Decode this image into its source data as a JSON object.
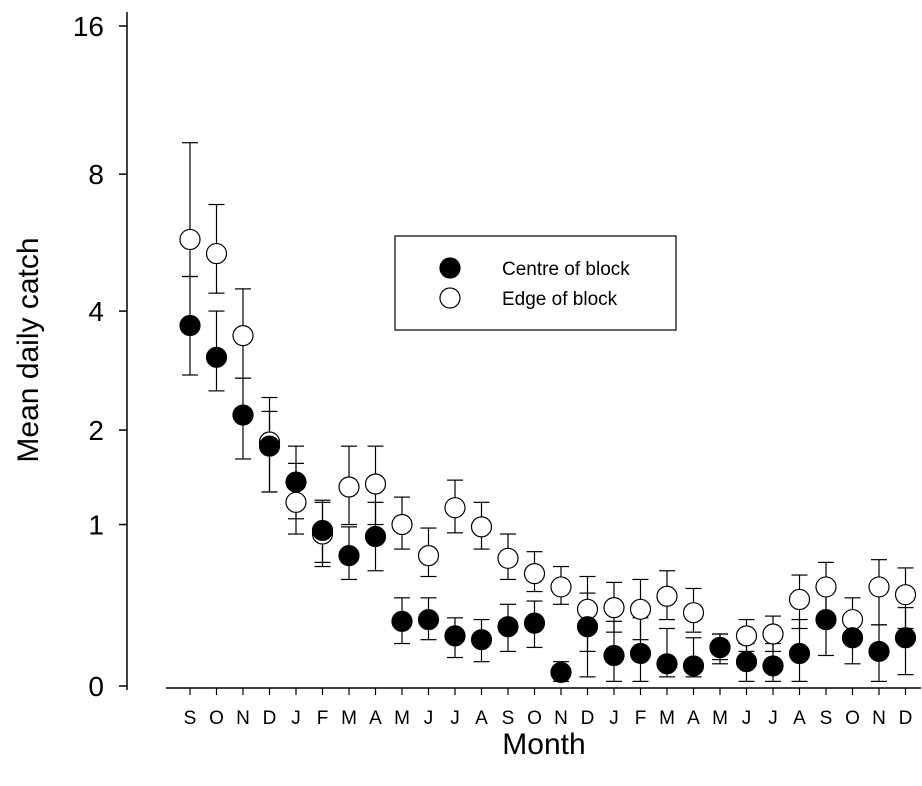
{
  "chart_data": {
    "type": "scatter",
    "xlabel": "Month",
    "ylabel": "Mean daily catch",
    "yscale": "log(x+1)",
    "yticks": [
      0,
      1,
      2,
      4,
      8,
      16
    ],
    "ylim": [
      0,
      16
    ],
    "grid": false,
    "legend_position": "top-center",
    "categories": [
      "S",
      "O",
      "N",
      "D",
      "J",
      "F",
      "M",
      "A",
      "M",
      "J",
      "J",
      "A",
      "S",
      "O",
      "N",
      "D",
      "J",
      "F",
      "M",
      "A",
      "M",
      "J",
      "J",
      "A",
      "S",
      "O",
      "N",
      "D"
    ],
    "series": [
      {
        "name": "Centre of block",
        "marker": "filled-circle",
        "color": "#000000",
        "values": [
          3.7,
          3.1,
          2.2,
          1.8,
          1.4,
          0.95,
          0.75,
          0.9,
          0.32,
          0.33,
          0.24,
          0.22,
          0.29,
          0.31,
          0.06,
          0.29,
          0.14,
          0.15,
          0.1,
          0.09,
          0.18,
          0.11,
          0.09,
          0.15,
          0.33,
          0.23,
          0.16,
          0.23
        ],
        "err_low": [
          2.8,
          2.55,
          1.65,
          1.3,
          1.05,
          0.7,
          0.58,
          0.64,
          0.2,
          0.22,
          0.13,
          0.11,
          0.16,
          0.18,
          0.02,
          0.04,
          0.02,
          0.02,
          0.04,
          0.04,
          0.1,
          0.02,
          0.02,
          0.02,
          0.14,
          0.1,
          0.02,
          0.05
        ],
        "err_high": [
          4.8,
          4.0,
          2.75,
          2.25,
          1.8,
          1.2,
          0.98,
          1.2,
          0.46,
          0.46,
          0.34,
          0.33,
          0.42,
          0.44,
          0.11,
          0.49,
          0.32,
          0.34,
          0.28,
          0.23,
          0.25,
          0.2,
          0.2,
          0.33,
          0.51,
          0.35,
          0.3,
          0.4
        ]
      },
      {
        "name": "Edge of block",
        "marker": "open-circle",
        "color": "#000000",
        "values": [
          5.8,
          5.4,
          3.5,
          1.85,
          1.2,
          0.92,
          1.35,
          1.38,
          1.0,
          0.75,
          1.15,
          0.98,
          0.73,
          0.62,
          0.53,
          0.39,
          0.4,
          0.39,
          0.47,
          0.37,
          0.18,
          0.24,
          0.25,
          0.45,
          0.53,
          0.33,
          0.53,
          0.48
        ],
        "err_low": [
          4.8,
          4.4,
          2.75,
          1.3,
          0.92,
          0.67,
          1.0,
          1.0,
          0.8,
          0.6,
          0.93,
          0.8,
          0.58,
          0.5,
          0.42,
          0.16,
          0.26,
          0.22,
          0.33,
          0.26,
          0.12,
          0.16,
          0.16,
          0.28,
          0.33,
          0.22,
          0.3,
          0.28
        ],
        "err_high": [
          9.3,
          6.9,
          4.5,
          2.45,
          1.6,
          1.22,
          1.8,
          1.8,
          1.25,
          0.97,
          1.42,
          1.2,
          0.92,
          0.78,
          0.67,
          0.6,
          0.56,
          0.58,
          0.64,
          0.52,
          0.25,
          0.33,
          0.35,
          0.61,
          0.7,
          0.46,
          0.72,
          0.66
        ]
      }
    ]
  }
}
